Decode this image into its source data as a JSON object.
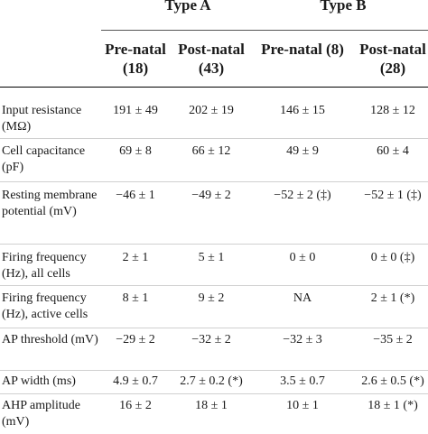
{
  "groups": [
    {
      "label": "Type A"
    },
    {
      "label": "Type B"
    }
  ],
  "columns": [
    {
      "label": "Pre-natal\n(18)"
    },
    {
      "label": "Post-natal\n(43)"
    },
    {
      "label": "Pre-natal (8)"
    },
    {
      "label": "Post-natal\n(28)"
    }
  ],
  "rows": [
    {
      "label": "Input resistance (MΩ)",
      "values": [
        "191 ± 49",
        "202 ± 19",
        "146 ± 15",
        "128 ± 12"
      ]
    },
    {
      "label": "Cell capacitance (pF)",
      "values": [
        "69 ± 8",
        "66 ± 12",
        "49 ± 9",
        "60 ± 4"
      ]
    },
    {
      "label": "Resting membrane potential (mV)",
      "values": [
        "−46 ± 1",
        "−49 ± 2",
        "−52 ± 2 (‡)",
        "−52 ± 1 (‡)"
      ]
    },
    {
      "label": "Firing frequency (Hz), all cells",
      "values": [
        "2 ± 1",
        "5 ± 1",
        "0 ± 0",
        "0 ± 0 (‡)"
      ]
    },
    {
      "label": "Firing frequency (Hz), active cells",
      "values": [
        "8 ± 1",
        "9 ± 2",
        "NA",
        "2 ± 1 (*)"
      ]
    },
    {
      "label": "AP threshold (mV)",
      "values": [
        "−29 ± 2",
        "−32 ± 2",
        "−32 ± 3",
        "−35 ± 2"
      ]
    },
    {
      "label": "AP width (ms)",
      "values": [
        "4.9 ± 0.7",
        "2.7 ± 0.2 (*)",
        "3.5 ± 0.7",
        "2.6 ± 0.5 (*)"
      ]
    },
    {
      "label": "AHP amplitude (mV)",
      "values": [
        "16 ± 2",
        "18 ± 1",
        "10 ± 1",
        "18 ± 1 (*)"
      ]
    }
  ]
}
